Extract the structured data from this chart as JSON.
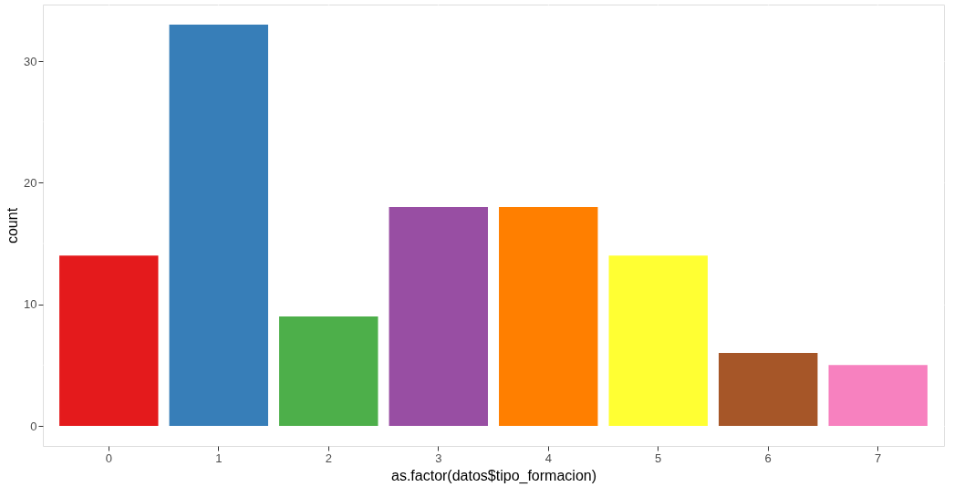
{
  "chart_data": {
    "type": "bar",
    "xlabel": "as.factor(datos$tipo_formacion)",
    "ylabel": "count",
    "categories": [
      "0",
      "1",
      "2",
      "3",
      "4",
      "5",
      "6",
      "7"
    ],
    "values": [
      14,
      33,
      9,
      18,
      18,
      14,
      6,
      5
    ],
    "colors": [
      "#e41a1c",
      "#377eb8",
      "#4daf4a",
      "#984ea3",
      "#ff7f00",
      "#ffff33",
      "#a65628",
      "#f781bf"
    ],
    "ylim": [
      -1.65,
      34.65
    ],
    "yticks": [
      0,
      10,
      20,
      30
    ],
    "grid": true
  }
}
